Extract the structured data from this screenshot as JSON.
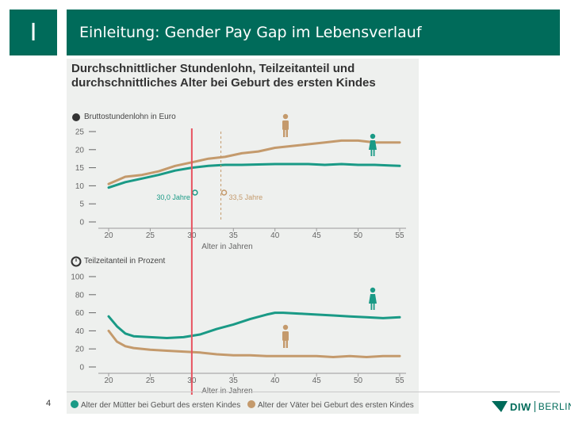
{
  "header": {
    "section_marker": "I",
    "title": "Einleitung: Gender Pay Gap im Lebensverlauf"
  },
  "figure": {
    "title_line1": "Durchschnittlicher Stundenlohn, Teilzeitanteil und",
    "title_line2": "durchschnittliches Alter bei Geburt des ersten Kindes",
    "legend_mothers": "Alter der Mütter bei Geburt des ersten Kindes",
    "legend_fathers": "Alter der Väter bei Geburt des ersten Kindes"
  },
  "footer": {
    "page_number": "4",
    "logo_primary": "DIW",
    "logo_secondary": "BERLIN"
  },
  "colors": {
    "brand": "#006b5a",
    "men": "#c49a6c",
    "women": "#1a9a86",
    "marker_line": "#e8525f"
  },
  "chart_data": [
    {
      "type": "line",
      "title": "Bruttostundenlohn in Euro",
      "xlabel": "Alter in Jahren",
      "ylabel": "Bruttostundenlohn in Euro",
      "xlim": [
        20,
        55
      ],
      "ylim": [
        0,
        25
      ],
      "x_ticks": [
        "20",
        "25",
        "30",
        "35",
        "40",
        "45",
        "50",
        "55"
      ],
      "y_ticks": [
        "0",
        "5",
        "10",
        "15",
        "20",
        "25"
      ],
      "x": [
        20,
        22,
        24,
        26,
        28,
        30,
        32,
        34,
        36,
        38,
        40,
        42,
        44,
        46,
        48,
        50,
        52,
        54,
        55
      ],
      "series": [
        {
          "name": "Männer",
          "values": [
            10.5,
            12.5,
            13,
            14,
            15.5,
            16.5,
            17.5,
            18,
            19,
            19.5,
            20.5,
            21,
            21.5,
            22,
            22.5,
            22.5,
            22,
            22,
            22
          ]
        },
        {
          "name": "Frauen",
          "values": [
            9.5,
            11,
            12,
            13,
            14.2,
            15,
            15.5,
            15.8,
            15.8,
            15.9,
            16,
            16,
            16,
            15.8,
            16,
            15.8,
            15.8,
            15.6,
            15.5
          ]
        }
      ],
      "annotations": [
        {
          "x": 30.0,
          "label": "30,0 Jahre"
        },
        {
          "x": 33.5,
          "label": "33,5 Jahre"
        }
      ]
    },
    {
      "type": "line",
      "title": "Teilzeitanteil in Prozent",
      "xlabel": "Alter in Jahren",
      "ylabel": "Teilzeitanteil in Prozent",
      "xlim": [
        20,
        55
      ],
      "ylim": [
        0,
        100
      ],
      "x_ticks": [
        "20",
        "25",
        "30",
        "35",
        "40",
        "45",
        "50",
        "55"
      ],
      "y_ticks": [
        "0",
        "20",
        "40",
        "60",
        "80",
        "100"
      ],
      "x": [
        20,
        21,
        22,
        23,
        25,
        27,
        29,
        31,
        33,
        35,
        37,
        39,
        40,
        41,
        43,
        45,
        47,
        49,
        51,
        53,
        55
      ],
      "series": [
        {
          "name": "Frauen",
          "values": [
            56,
            45,
            37,
            34,
            33,
            32,
            33,
            36,
            42,
            47,
            53,
            58,
            60,
            60,
            59,
            58,
            57,
            56,
            55,
            54,
            55
          ]
        },
        {
          "name": "Männer",
          "values": [
            40,
            28,
            23,
            21,
            19,
            18,
            17,
            16,
            14,
            13,
            13,
            12,
            12,
            12,
            12,
            12,
            11,
            12,
            11,
            12,
            12
          ]
        }
      ]
    }
  ]
}
